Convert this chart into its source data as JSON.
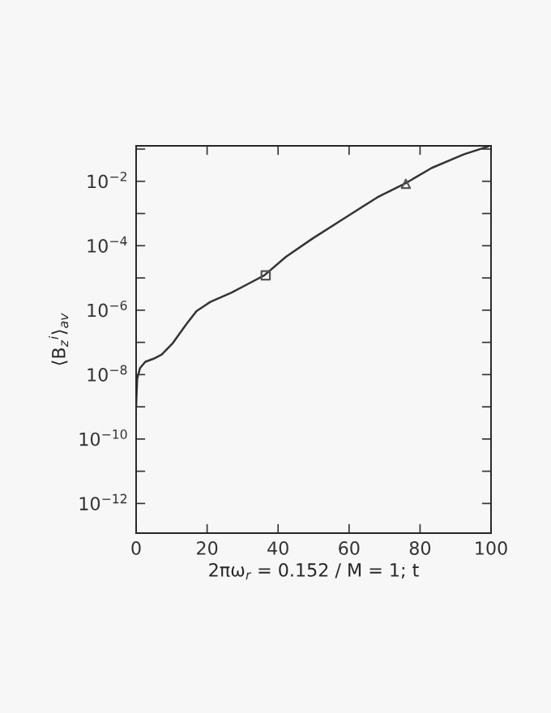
{
  "chart_data": {
    "type": "line",
    "xlabel": "2πω$_{r}$ = 0.152 / M = 1; t",
    "ylabel": "⟨B$_{z}$$^{i}$⟩$_{av}$",
    "log": "y",
    "grid": false,
    "legend": false,
    "xlim": [
      0,
      100
    ],
    "xticks": [
      0,
      20,
      40,
      60,
      80,
      100
    ],
    "ylim": [
      1.2e-13,
      0.126
    ],
    "yticks": [
      {
        "value": 1e-12,
        "label": "10$^{−12}$"
      },
      {
        "value": 1e-11,
        "label": null
      },
      {
        "value": 1e-10,
        "label": "10$^{−10}$"
      },
      {
        "value": 1e-09,
        "label": null
      },
      {
        "value": 1e-08,
        "label": "10$^{−8}$"
      },
      {
        "value": 1e-07,
        "label": null
      },
      {
        "value": 1e-06,
        "label": "10$^{−6}$"
      },
      {
        "value": 1e-05,
        "label": null
      },
      {
        "value": 0.0001,
        "label": "10$^{−4}$"
      },
      {
        "value": 0.001,
        "label": null
      },
      {
        "value": 0.01,
        "label": "10$^{−2}$"
      },
      {
        "value": 0.1,
        "label": null
      }
    ],
    "series": [
      {
        "color": "#333333",
        "line_style": "solid",
        "marker": "none",
        "x": [
          0,
          0.3,
          1.1,
          2.6,
          4.9,
          7.2,
          10.2,
          14,
          17,
          20.9,
          26.9,
          31.5,
          36.1,
          42.2,
          49.8,
          58.9,
          68,
          75.6,
          83.3,
          92.4,
          99.2
        ],
        "values": [
          1.07e-09,
          7.4e-09,
          1.6e-08,
          2.5e-08,
          3.1e-08,
          4.2e-08,
          9.1e-08,
          3.5e-07,
          9.3e-07,
          1.8e-06,
          3.5e-06,
          6.5e-06,
          1.2e-05,
          4.5e-05,
          0.00017,
          0.00074,
          0.0032,
          0.0083,
          0.026,
          0.069,
          0.12
        ]
      },
      {
        "type": "scatter",
        "color": "#555555",
        "marker": "square",
        "x": [
          36.5
        ],
        "values": [
          1.2e-05
        ]
      },
      {
        "type": "scatter",
        "color": "#555555",
        "marker": "triangle",
        "x": [
          76
        ],
        "values": [
          0.0083
        ]
      }
    ]
  }
}
